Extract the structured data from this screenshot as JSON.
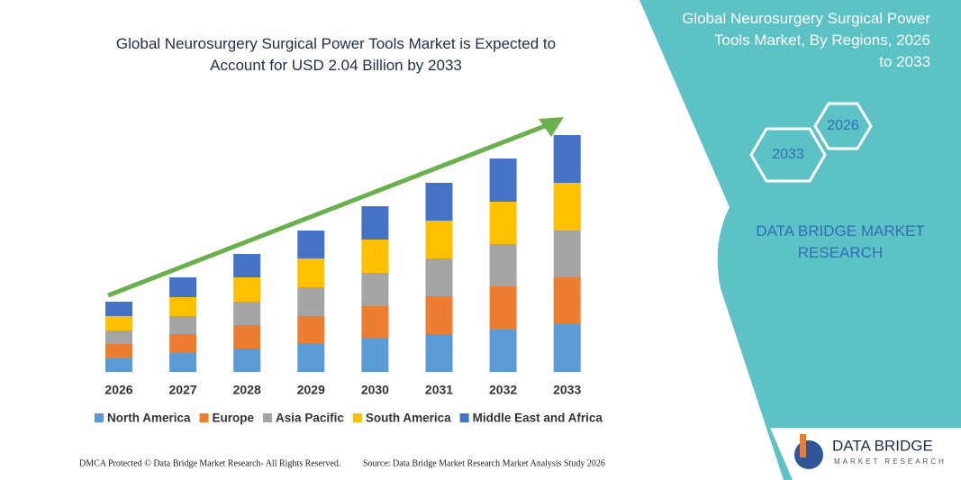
{
  "chart_data": {
    "type": "stacked-bar",
    "title": "Global Neurosurgery Surgical Power Tools Market is Expected to Account for USD 2.04 Billion by 2033",
    "categories": [
      "2026",
      "2027",
      "2028",
      "2029",
      "2030",
      "2031",
      "2032",
      "2033"
    ],
    "series": [
      {
        "name": "North America",
        "color": "#5b9bd5",
        "values": [
          15,
          21,
          26,
          32,
          37,
          42,
          47,
          53
        ]
      },
      {
        "name": "Europe",
        "color": "#ed7d31",
        "values": [
          16,
          21,
          26,
          30,
          36,
          42,
          48,
          52
        ]
      },
      {
        "name": "Asia Pacific",
        "color": "#a5a5a5",
        "values": [
          15,
          20,
          26,
          32,
          37,
          42,
          47,
          52
        ]
      },
      {
        "name": "South America",
        "color": "#ffc000",
        "values": [
          16,
          21,
          27,
          32,
          37,
          42,
          47,
          53
        ]
      },
      {
        "name": "Middle East and Africa",
        "color": "#4472c4",
        "values": [
          16,
          22,
          26,
          31,
          37,
          42,
          48,
          53
        ]
      }
    ],
    "ylim": [
      0,
      280
    ],
    "grid": false,
    "legend": "bottom"
  },
  "panel": {
    "title": "Global Neurosurgery Surgical Power Tools Market, By Regions, 2026 to 2033",
    "hex_start": "2026",
    "hex_end": "2033",
    "brand": "DATA BRIDGE MARKET RESEARCH"
  },
  "logo": {
    "name": "DATA BRIDGE",
    "tagline": "MARKET RESEARCH"
  },
  "footer": {
    "left": "DMCA Protected © Data Bridge Market Research- All Rights Reserved.",
    "right": "Source: Data Bridge Market Research Market Analysis Study 2026"
  }
}
